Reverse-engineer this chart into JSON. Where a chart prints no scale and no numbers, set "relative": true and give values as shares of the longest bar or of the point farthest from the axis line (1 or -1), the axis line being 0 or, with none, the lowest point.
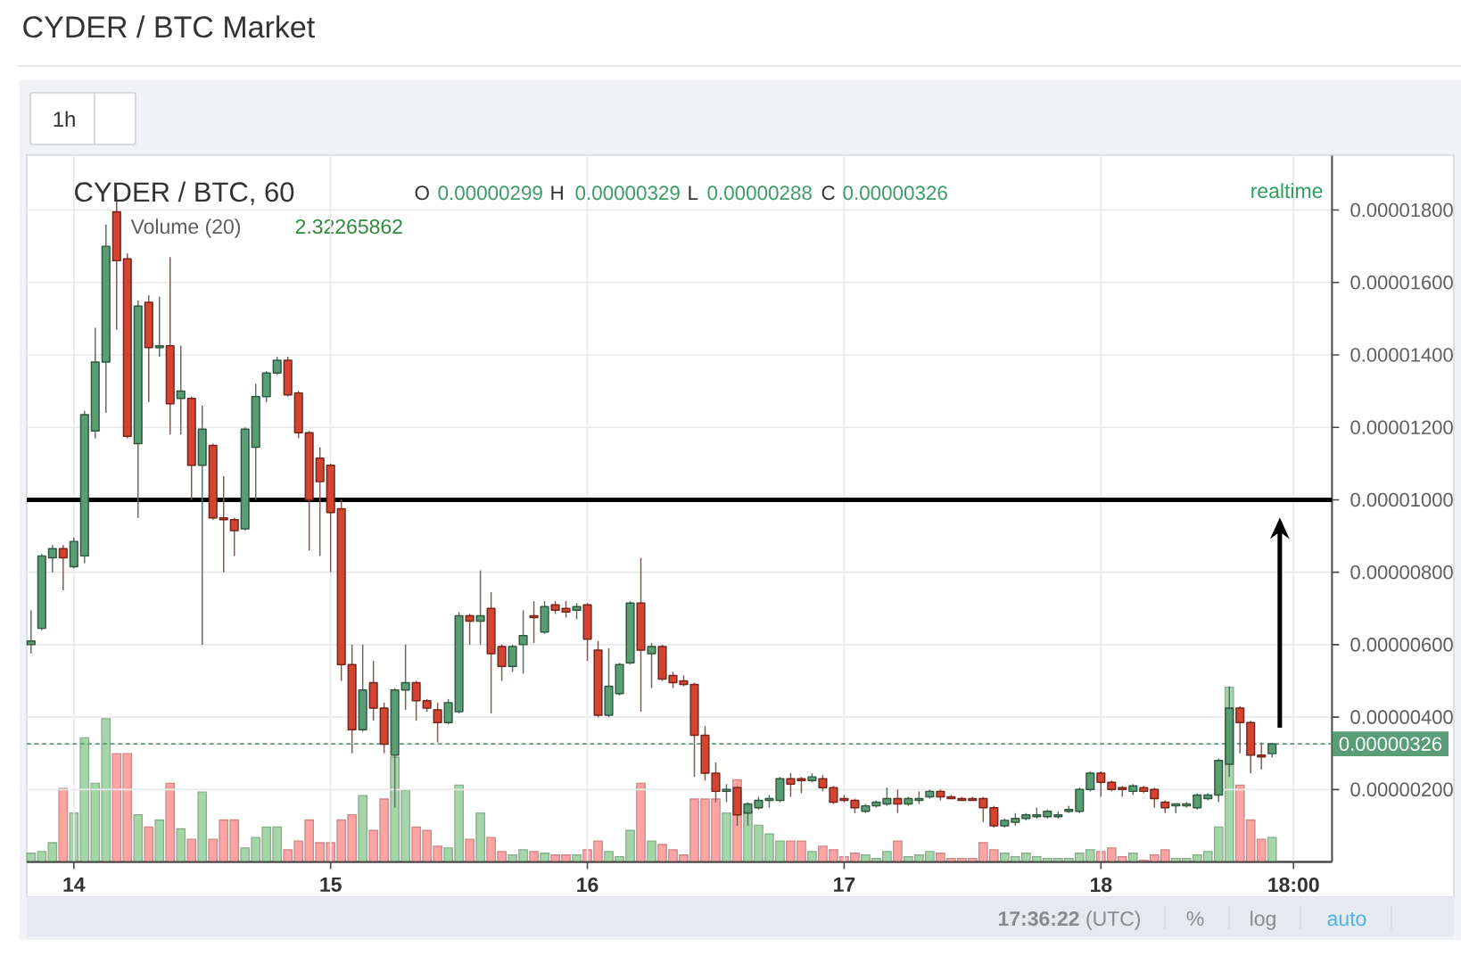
{
  "chart_data": [
    {
      "type": "candlestick",
      "title": "CYDER / BTC Market",
      "subtitle": "CYDER / BTC, 60",
      "annotations": [
        "O",
        "0.00000299",
        "H",
        "0.00000329",
        "L",
        "0.00000288",
        "C",
        "0.00000326",
        "realtime",
        "1h",
        "**17:36:22** (UTC)",
        "%",
        "log",
        "auto"
      ],
      "categories": [
        null,
        null,
        null,
        null,
        "14",
        null,
        null,
        null,
        null,
        null,
        null,
        null,
        null,
        null,
        null,
        null,
        null,
        null,
        null,
        null,
        null,
        null,
        null,
        null,
        null,
        null,
        null,
        null,
        "15",
        null,
        null,
        null,
        null,
        null,
        null,
        null,
        null,
        null,
        null,
        null,
        null,
        null,
        null,
        null,
        null,
        null,
        null,
        null,
        null,
        null,
        null,
        null,
        "16",
        null,
        null,
        null,
        null,
        null,
        null,
        null,
        null,
        null,
        null,
        null,
        null,
        null,
        null,
        null,
        null,
        null,
        null,
        null,
        null,
        null,
        null,
        null,
        "17",
        null,
        null,
        null,
        null,
        null,
        null,
        null,
        null,
        null,
        null,
        null,
        null,
        null,
        null,
        null,
        null,
        null,
        null,
        null,
        null,
        null,
        null,
        null,
        "18",
        null,
        null,
        null,
        null,
        null,
        null,
        null,
        null,
        null,
        null,
        null,
        null,
        null,
        null,
        null,
        null,
        null,
        "18:00",
        null,
        null,
        null
      ],
      "ohlc": [
        [
          6e-06,
          6.95e-06,
          5.75e-06,
          6.1e-06
        ],
        [
          6.45e-06,
          8.5e-06,
          6.4e-06,
          8.45e-06
        ],
        [
          8.4e-06,
          8.75e-06,
          8e-06,
          8.65e-06
        ],
        [
          8.65e-06,
          8.75e-06,
          7.5e-06,
          8.4e-06
        ],
        [
          8.15e-06,
          8.95e-06,
          8.1e-06,
          8.85e-06
        ],
        [
          8.45e-06,
          1.245e-05,
          8.25e-06,
          1.235e-05
        ],
        [
          1.19e-05,
          1.475e-05,
          1.17e-05,
          1.38e-05
        ],
        [
          1.38e-05,
          1.76e-05,
          1.24e-05,
          1.7e-05
        ],
        [
          1.795e-05,
          1.85e-05,
          1.47e-05,
          1.66e-05
        ],
        [
          1.665e-05,
          1.68e-05,
          1.17e-05,
          1.175e-05
        ],
        [
          1.155e-05,
          1.55e-05,
          9.5e-06,
          1.535e-05
        ],
        [
          1.545e-05,
          1.565e-05,
          1.27e-05,
          1.42e-05
        ],
        [
          1.42e-05,
          1.56e-05,
          1.395e-05,
          1.425e-05
        ],
        [
          1.425e-05,
          1.67e-05,
          1.18e-05,
          1.265e-05
        ],
        [
          1.28e-05,
          1.425e-05,
          1.18e-05,
          1.3e-05
        ],
        [
          1.28e-05,
          1.285e-05,
          1e-05,
          1.095e-05
        ],
        [
          1.095e-05,
          1.26e-05,
          6e-06,
          1.195e-05
        ],
        [
          1.15e-05,
          1.155e-05,
          9.45e-06,
          9.5e-06
        ],
        [
          9.5e-06,
          1.065e-05,
          8e-06,
          9.45e-06
        ],
        [
          9.45e-06,
          9.5e-06,
          8.45e-06,
          9.15e-06
        ],
        [
          9.2e-06,
          1.2e-05,
          9.15e-06,
          1.195e-05
        ],
        [
          1.145e-05,
          1.32e-05,
          1e-05,
          1.285e-05
        ],
        [
          1.285e-05,
          1.355e-05,
          1.27e-05,
          1.35e-05
        ],
        [
          1.35e-05,
          1.395e-05,
          1.345e-05,
          1.385e-05
        ],
        [
          1.385e-05,
          1.395e-05,
          1.285e-05,
          1.29e-05
        ],
        [
          1.295e-05,
          1.3e-05,
          1.17e-05,
          1.185e-05
        ],
        [
          1.185e-05,
          1.19e-05,
          8.6e-06,
          1e-05
        ],
        [
          1.115e-05,
          1.145e-05,
          8.45e-06,
          1.05e-05
        ],
        [
          1.095e-05,
          1.1e-05,
          8e-06,
          9.65e-06
        ],
        [
          9.75e-06,
          1e-05,
          5e-06,
          5.45e-06
        ],
        [
          5.45e-06,
          6e-06,
          3e-06,
          3.65e-06
        ],
        [
          3.65e-06,
          6e-06,
          3.6e-06,
          4.75e-06
        ],
        [
          4.95e-06,
          5.55e-06,
          3.9e-06,
          4.25e-06
        ],
        [
          4.25e-06,
          4.4e-06,
          3e-06,
          3.25e-06
        ],
        [
          2.95e-06,
          4.8e-06,
          1.5e-06,
          4.75e-06
        ],
        [
          4.75e-06,
          6e-06,
          4.2e-06,
          4.95e-06
        ],
        [
          4.95e-06,
          5e-06,
          3.9e-06,
          4.45e-06
        ],
        [
          4.45e-06,
          4.5e-06,
          4.15e-06,
          4.25e-06
        ],
        [
          4.2e-06,
          4.4e-06,
          3.3e-06,
          3.85e-06
        ],
        [
          3.85e-06,
          4.5e-06,
          3.8e-06,
          4.4e-06
        ],
        [
          4.15e-06,
          6.9e-06,
          4.1e-06,
          6.8e-06
        ],
        [
          6.8e-06,
          6.85e-06,
          6e-06,
          6.65e-06
        ],
        [
          6.65e-06,
          8.05e-06,
          6e-06,
          6.8e-06
        ],
        [
          7e-06,
          7.45e-06,
          4.1e-06,
          5.75e-06
        ],
        [
          5.95e-06,
          6e-06,
          5e-06,
          5.4e-06
        ],
        [
          5.4e-06,
          6e-06,
          5.25e-06,
          5.95e-06
        ],
        [
          6e-06,
          6.95e-06,
          5.2e-06,
          6.25e-06
        ],
        [
          6.8e-06,
          7.2e-06,
          6.05e-06,
          6.75e-06
        ],
        [
          6.35e-06,
          7.2e-06,
          6.3e-06,
          7.05e-06
        ],
        [
          7.1e-06,
          7.2e-06,
          6.85e-06,
          6.95e-06
        ],
        [
          7e-06,
          7.2e-06,
          6.75e-06,
          6.9e-06
        ],
        [
          6.95e-06,
          7.15e-06,
          6.7e-06,
          7.05e-06
        ],
        [
          7.1e-06,
          7.15e-06,
          5.55e-06,
          6.15e-06
        ],
        [
          5.85e-06,
          6.1e-06,
          4e-06,
          4.05e-06
        ],
        [
          4.05e-06,
          5.9e-06,
          4e-06,
          4.85e-06
        ],
        [
          4.65e-06,
          5.5e-06,
          4.6e-06,
          5.45e-06
        ],
        [
          5.5e-06,
          7.2e-06,
          5.45e-06,
          7.15e-06
        ],
        [
          7.15e-06,
          8.4e-06,
          4.15e-06,
          5.85e-06
        ],
        [
          5.75e-06,
          6.05e-06,
          4.8e-06,
          5.95e-06
        ],
        [
          5.95e-06,
          6e-06,
          5e-06,
          5.05e-06
        ],
        [
          5.15e-06,
          5.25e-06,
          4.8e-06,
          4.95e-06
        ],
        [
          5e-06,
          5.15e-06,
          4.85e-06,
          4.9e-06
        ],
        [
          4.9e-06,
          4.95e-06,
          2.35e-06,
          3.5e-06
        ],
        [
          3.5e-06,
          3.75e-06,
          2.25e-06,
          2.45e-06
        ],
        [
          2.45e-06,
          2.75e-06,
          1.65e-06,
          1.95e-06
        ],
        [
          1.95e-06,
          2.15e-06,
          1.65e-06,
          2e-06
        ],
        [
          2.05e-06,
          2.1e-06,
          1e-06,
          1.3e-06
        ],
        [
          1.35e-06,
          1.65e-06,
          1e-06,
          1.6e-06
        ],
        [
          1.5e-06,
          1.8e-06,
          1.45e-06,
          1.7e-06
        ],
        [
          1.7e-06,
          1.85e-06,
          1.5e-06,
          1.75e-06
        ],
        [
          1.7e-06,
          2.35e-06,
          1.65e-06,
          2.3e-06
        ],
        [
          2.3e-06,
          2.45e-06,
          1.8e-06,
          2.15e-06
        ],
        [
          2.3e-06,
          2.35e-06,
          1.9e-06,
          2.25e-06
        ],
        [
          2.25e-06,
          2.45e-06,
          2.2e-06,
          2.35e-06
        ],
        [
          2.3e-06,
          2.4e-06,
          1.95e-06,
          2.05e-06
        ],
        [
          2.05e-06,
          2.1e-06,
          1.6e-06,
          1.65e-06
        ],
        [
          1.75e-06,
          1.85e-06,
          1.65e-06,
          1.7e-06
        ],
        [
          1.7e-06,
          1.75e-06,
          1.35e-06,
          1.5e-06
        ],
        [
          1.4e-06,
          1.6e-06,
          1.35e-06,
          1.55e-06
        ],
        [
          1.55e-06,
          1.7e-06,
          1.5e-06,
          1.65e-06
        ],
        [
          1.6e-06,
          2.05e-06,
          1.55e-06,
          1.75e-06
        ],
        [
          1.75e-06,
          2e-06,
          1.35e-06,
          1.6e-06
        ],
        [
          1.6e-06,
          1.8e-06,
          1.55e-06,
          1.75e-06
        ],
        [
          1.7e-06,
          1.95e-06,
          1.6e-06,
          1.75e-06
        ],
        [
          1.8e-06,
          2e-06,
          1.75e-06,
          1.95e-06
        ],
        [
          1.95e-06,
          2e-06,
          1.7e-06,
          1.8e-06
        ],
        [
          1.8e-06,
          1.85e-06,
          1.75e-06,
          1.75e-06
        ],
        [
          1.75e-06,
          1.8e-06,
          1.7e-06,
          1.7e-06
        ],
        [
          1.75e-06,
          1.8e-06,
          1.7e-06,
          1.7e-06
        ],
        [
          1.75e-06,
          1.8e-06,
          1.1e-06,
          1.5e-06
        ],
        [
          1.5e-06,
          1.55e-06,
          9.5e-07,
          1e-06
        ],
        [
          1e-06,
          1.2e-06,
          9.5e-07,
          1.15e-06
        ],
        [
          1.1e-06,
          1.35e-06,
          1e-06,
          1.2e-06
        ],
        [
          1.2e-06,
          1.35e-06,
          1.15e-06,
          1.3e-06
        ],
        [
          1.25e-06,
          1.5e-06,
          1.2e-06,
          1.3e-06
        ],
        [
          1.25e-06,
          1.45e-06,
          1.2e-06,
          1.4e-06
        ],
        [
          1.25e-06,
          1.4e-06,
          1.2e-06,
          1.3e-06
        ],
        [
          1.4e-06,
          1.55e-06,
          1.35e-06,
          1.45e-06
        ],
        [
          1.4e-06,
          2.05e-06,
          1.35e-06,
          2e-06
        ],
        [
          2e-06,
          2.5e-06,
          1.95e-06,
          2.45e-06
        ],
        [
          2.45e-06,
          2.5e-06,
          1.8e-06,
          2.2e-06
        ],
        [
          2.2e-06,
          2.25e-06,
          1.95e-06,
          2e-06
        ],
        [
          2.05e-06,
          2.1e-06,
          1.8e-06,
          2e-06
        ],
        [
          1.95e-06,
          2.15e-06,
          1.85e-06,
          2.1e-06
        ],
        [
          2.05e-06,
          2.1e-06,
          1.9e-06,
          1.95e-06
        ],
        [
          2e-06,
          2.05e-06,
          1.5e-06,
          1.75e-06
        ],
        [
          1.65e-06,
          1.7e-06,
          1.35e-06,
          1.5e-06
        ],
        [
          1.55e-06,
          1.6e-06,
          1.35e-06,
          1.6e-06
        ],
        [
          1.55e-06,
          1.65e-06,
          1.5e-06,
          1.6e-06
        ],
        [
          1.5e-06,
          1.9e-06,
          1.45e-06,
          1.85e-06
        ],
        [
          1.75e-06,
          1.9e-06,
          1.7e-06,
          1.85e-06
        ],
        [
          1.85e-06,
          2.85e-06,
          1.65e-06,
          2.8e-06
        ],
        [
          2.7e-06,
          4.85e-06,
          2.35e-06,
          4.25e-06
        ],
        [
          4.25e-06,
          4.3e-06,
          3e-06,
          3.85e-06
        ],
        [
          3.85e-06,
          3.9e-06,
          2.45e-06,
          2.95e-06
        ],
        [
          2.95e-06,
          3.3e-06,
          2.55e-06,
          2.9e-06
        ],
        [
          2.99e-06,
          3.29e-06,
          2.88e-06,
          3.26e-06
        ],
        null,
        null,
        null,
        null,
        null
      ],
      "colors": [
        "#579f73",
        "#579f73",
        "#579f73",
        "#d7432f",
        "#579f73",
        "#579f73",
        "#579f73",
        "#579f73",
        "#d7432f",
        "#d7432f",
        "#579f73",
        "#d7432f",
        "#579f73",
        "#d7432f",
        "#579f73",
        "#d7432f",
        "#579f73",
        "#d7432f",
        "#d7432f",
        "#d7432f",
        "#579f73",
        "#579f73",
        "#579f73",
        "#579f73",
        "#d7432f",
        "#d7432f",
        "#d7432f",
        "#d7432f",
        "#d7432f",
        "#d7432f",
        "#d7432f",
        "#579f73",
        "#d7432f",
        "#d7432f",
        "#579f73",
        "#579f73",
        "#d7432f",
        "#d7432f",
        "#d7432f",
        "#579f73",
        "#579f73",
        "#d7432f",
        "#579f73",
        "#d7432f",
        "#d7432f",
        "#579f73",
        "#579f73",
        "#d7432f",
        "#579f73",
        "#d7432f",
        "#d7432f",
        "#579f73",
        "#d7432f",
        "#d7432f",
        "#579f73",
        "#579f73",
        "#579f73",
        "#d7432f",
        "#579f73",
        "#d7432f",
        "#d7432f",
        "#d7432f",
        "#d7432f",
        "#d7432f",
        "#d7432f",
        "#579f73",
        "#d7432f",
        "#579f73",
        "#579f73",
        "#579f73",
        "#579f73",
        "#d7432f",
        "#d7432f",
        "#579f73",
        "#d7432f",
        "#d7432f",
        "#d7432f",
        "#d7432f",
        "#579f73",
        "#579f73",
        "#579f73",
        "#d7432f",
        "#579f73",
        "#579f73",
        "#579f73",
        "#d7432f",
        "#d7432f",
        "#d7432f",
        "#d7432f",
        "#d7432f",
        "#d7432f",
        "#579f73",
        "#579f73",
        "#579f73",
        "#579f73",
        "#579f73",
        "#579f73",
        "#579f73",
        "#579f73",
        "#579f73",
        "#d7432f",
        "#d7432f",
        "#d7432f",
        "#579f73",
        "#d7432f",
        "#d7432f",
        "#d7432f",
        "#579f73",
        "#579f73",
        "#579f73",
        "#579f73",
        "#579f73",
        "#579f73",
        "#d7432f",
        "#d7432f",
        "#d7432f",
        "#579f73",
        null,
        null,
        null,
        null,
        null
      ],
      "ylim": [
        0,
        1.95e-05
      ],
      "yticks": [
        {
          "value": 2e-06,
          "label": "0.00000200"
        },
        {
          "value": 4e-06,
          "label": "0.00000400"
        },
        {
          "value": 6e-06,
          "label": "0.00000600"
        },
        {
          "value": 8e-06,
          "label": "0.00000800"
        },
        {
          "value": 1e-05,
          "label": "0.00001000"
        },
        {
          "value": 1.2e-05,
          "label": "0.00001200"
        },
        {
          "value": 1.4e-05,
          "label": "0.00001400"
        },
        {
          "value": 1.6e-05,
          "label": "0.00001600"
        },
        {
          "value": 1.8e-05,
          "label": "0.00001800"
        }
      ],
      "grid": true,
      "ref_lines": [
        {
          "axis": "y",
          "value": 3.26e-06,
          "label": "0.00000326",
          "color": "#5a9e78",
          "line_style": "dashed"
        },
        {
          "axis": "y",
          "value": 1e-05,
          "color": "#000000"
        }
      ]
    },
    {
      "type": "bar",
      "title": "Volume (20)",
      "annotations": [
        "2.32265862"
      ],
      "relative": true,
      "categories": [
        null,
        null,
        null,
        null,
        null,
        null,
        null,
        null,
        null,
        null,
        null,
        null,
        null,
        null,
        null,
        null,
        null,
        null,
        null,
        null,
        null,
        null,
        null,
        null,
        null,
        null,
        null,
        null,
        null,
        null,
        null,
        null,
        null,
        null,
        null,
        null,
        null,
        null,
        null,
        null,
        null,
        null,
        null,
        null,
        null,
        null,
        null,
        null,
        null,
        null,
        null,
        null,
        null,
        null,
        null,
        null,
        null,
        null,
        null,
        null,
        null,
        null,
        null,
        null,
        null,
        null,
        null,
        null,
        null,
        null,
        null,
        null,
        null,
        null,
        null,
        null,
        null,
        null,
        null,
        null,
        null,
        null,
        null,
        null,
        null,
        null,
        null,
        null,
        null,
        null,
        null,
        null,
        null,
        null,
        null,
        null,
        null,
        null,
        null,
        null,
        null,
        null,
        null,
        null,
        null,
        null,
        null,
        null,
        null,
        null,
        null,
        null,
        null,
        null,
        null,
        null,
        null,
        null,
        null,
        null,
        null,
        null
      ],
      "values": [
        0.05,
        0.06,
        0.11,
        0.42,
        0.28,
        0.71,
        0.45,
        0.82,
        0.62,
        0.62,
        0.27,
        0.2,
        0.24,
        0.45,
        0.19,
        0.13,
        0.4,
        0.13,
        0.24,
        0.24,
        0.08,
        0.14,
        0.2,
        0.2,
        0.07,
        0.12,
        0.24,
        0.11,
        0.11,
        0.24,
        0.27,
        0.38,
        0.18,
        0.36,
        0.6,
        0.41,
        0.2,
        0.18,
        0.09,
        0.08,
        0.44,
        0.13,
        0.28,
        0.14,
        0.06,
        0.04,
        0.07,
        0.06,
        0.05,
        0.04,
        0.04,
        0.04,
        0.07,
        0.12,
        0.06,
        0.03,
        0.18,
        0.45,
        0.12,
        0.1,
        0.07,
        0.04,
        0.36,
        0.36,
        0.36,
        0.28,
        0.47,
        0.29,
        0.21,
        0.16,
        0.12,
        0.12,
        0.12,
        0.06,
        0.09,
        0.07,
        0.03,
        0.05,
        0.04,
        0.02,
        0.06,
        0.12,
        0.03,
        0.04,
        0.06,
        0.05,
        0.02,
        0.02,
        0.02,
        0.11,
        0.07,
        0.05,
        0.03,
        0.05,
        0.03,
        0.02,
        0.02,
        0.02,
        0.05,
        0.07,
        0.06,
        0.08,
        0.03,
        0.05,
        0.01,
        0.04,
        0.07,
        0.02,
        0.02,
        0.04,
        0.06,
        0.2,
        1,
        0.44,
        0.24,
        0.13,
        0.14,
        null,
        null,
        null,
        null,
        null
      ],
      "colors": [
        "#a5d6a7",
        "#a5d6a7",
        "#a5d6a7",
        "#ffa3a3",
        "#a5d6a7",
        "#a5d6a7",
        "#a5d6a7",
        "#a5d6a7",
        "#ffa3a3",
        "#ffa3a3",
        "#a5d6a7",
        "#ffa3a3",
        "#a5d6a7",
        "#ffa3a3",
        "#a5d6a7",
        "#ffa3a3",
        "#a5d6a7",
        "#ffa3a3",
        "#ffa3a3",
        "#ffa3a3",
        "#a5d6a7",
        "#a5d6a7",
        "#a5d6a7",
        "#a5d6a7",
        "#ffa3a3",
        "#ffa3a3",
        "#ffa3a3",
        "#ffa3a3",
        "#ffa3a3",
        "#ffa3a3",
        "#ffa3a3",
        "#a5d6a7",
        "#ffa3a3",
        "#ffa3a3",
        "#a5d6a7",
        "#a5d6a7",
        "#ffa3a3",
        "#ffa3a3",
        "#ffa3a3",
        "#a5d6a7",
        "#a5d6a7",
        "#ffa3a3",
        "#a5d6a7",
        "#ffa3a3",
        "#ffa3a3",
        "#a5d6a7",
        "#a5d6a7",
        "#ffa3a3",
        "#a5d6a7",
        "#ffa3a3",
        "#ffa3a3",
        "#a5d6a7",
        "#ffa3a3",
        "#ffa3a3",
        "#a5d6a7",
        "#a5d6a7",
        "#a5d6a7",
        "#ffa3a3",
        "#a5d6a7",
        "#ffa3a3",
        "#ffa3a3",
        "#ffa3a3",
        "#ffa3a3",
        "#ffa3a3",
        "#ffa3a3",
        "#a5d6a7",
        "#ffa3a3",
        "#a5d6a7",
        "#a5d6a7",
        "#a5d6a7",
        "#a5d6a7",
        "#ffa3a3",
        "#ffa3a3",
        "#a5d6a7",
        "#ffa3a3",
        "#ffa3a3",
        "#ffa3a3",
        "#ffa3a3",
        "#a5d6a7",
        "#a5d6a7",
        "#a5d6a7",
        "#ffa3a3",
        "#a5d6a7",
        "#a5d6a7",
        "#a5d6a7",
        "#ffa3a3",
        "#ffa3a3",
        "#ffa3a3",
        "#ffa3a3",
        "#ffa3a3",
        "#ffa3a3",
        "#a5d6a7",
        "#a5d6a7",
        "#a5d6a7",
        "#a5d6a7",
        "#a5d6a7",
        "#a5d6a7",
        "#a5d6a7",
        "#a5d6a7",
        "#a5d6a7",
        "#ffa3a3",
        "#ffa3a3",
        "#ffa3a3",
        "#a5d6a7",
        "#ffa3a3",
        "#ffa3a3",
        "#ffa3a3",
        "#a5d6a7",
        "#a5d6a7",
        "#a5d6a7",
        "#a5d6a7",
        "#a5d6a7",
        "#a5d6a7",
        "#ffa3a3",
        "#ffa3a3",
        "#ffa3a3",
        "#a5d6a7",
        null,
        null,
        null,
        null,
        null
      ]
    }
  ]
}
